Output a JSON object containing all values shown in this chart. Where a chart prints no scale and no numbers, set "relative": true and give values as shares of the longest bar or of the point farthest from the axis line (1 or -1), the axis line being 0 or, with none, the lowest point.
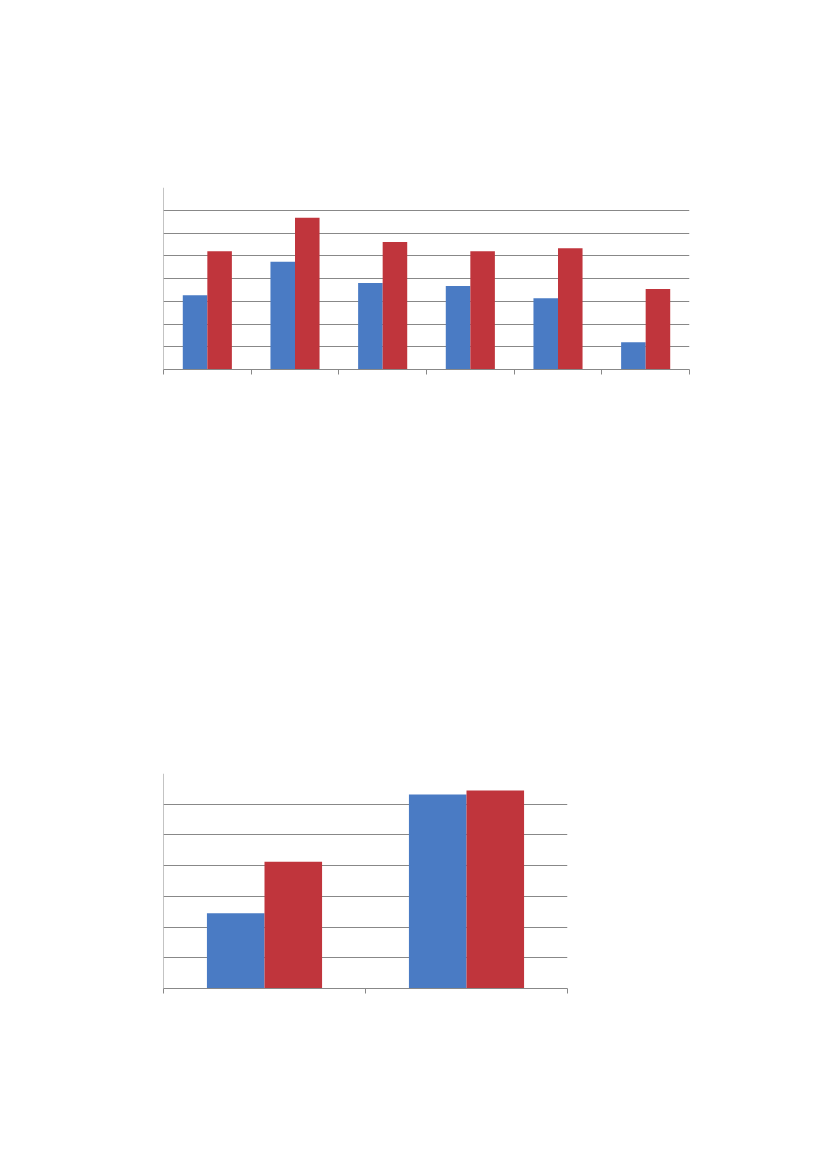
{
  "chart_data": [
    {
      "type": "bar",
      "relative": true,
      "categories": [
        null,
        null,
        null,
        null,
        null,
        null
      ],
      "grid": "y",
      "tick_labels": false,
      "series": [
        {
          "color": "#4a7bc4",
          "values": [
            0.49,
            0.71,
            0.57,
            0.55,
            0.47,
            0.18
          ]
        },
        {
          "color": "#c0353c",
          "values": [
            0.78,
            1,
            0.84,
            0.78,
            0.8,
            0.53
          ]
        }
      ]
    },
    {
      "type": "bar",
      "relative": true,
      "categories": [
        null,
        null
      ],
      "grid": "y",
      "tick_labels": false,
      "series": [
        {
          "color": "#4a7bc4",
          "values": [
            0.38,
            0.98
          ]
        },
        {
          "color": "#c0353c",
          "values": [
            0.64,
            1
          ]
        }
      ]
    }
  ]
}
